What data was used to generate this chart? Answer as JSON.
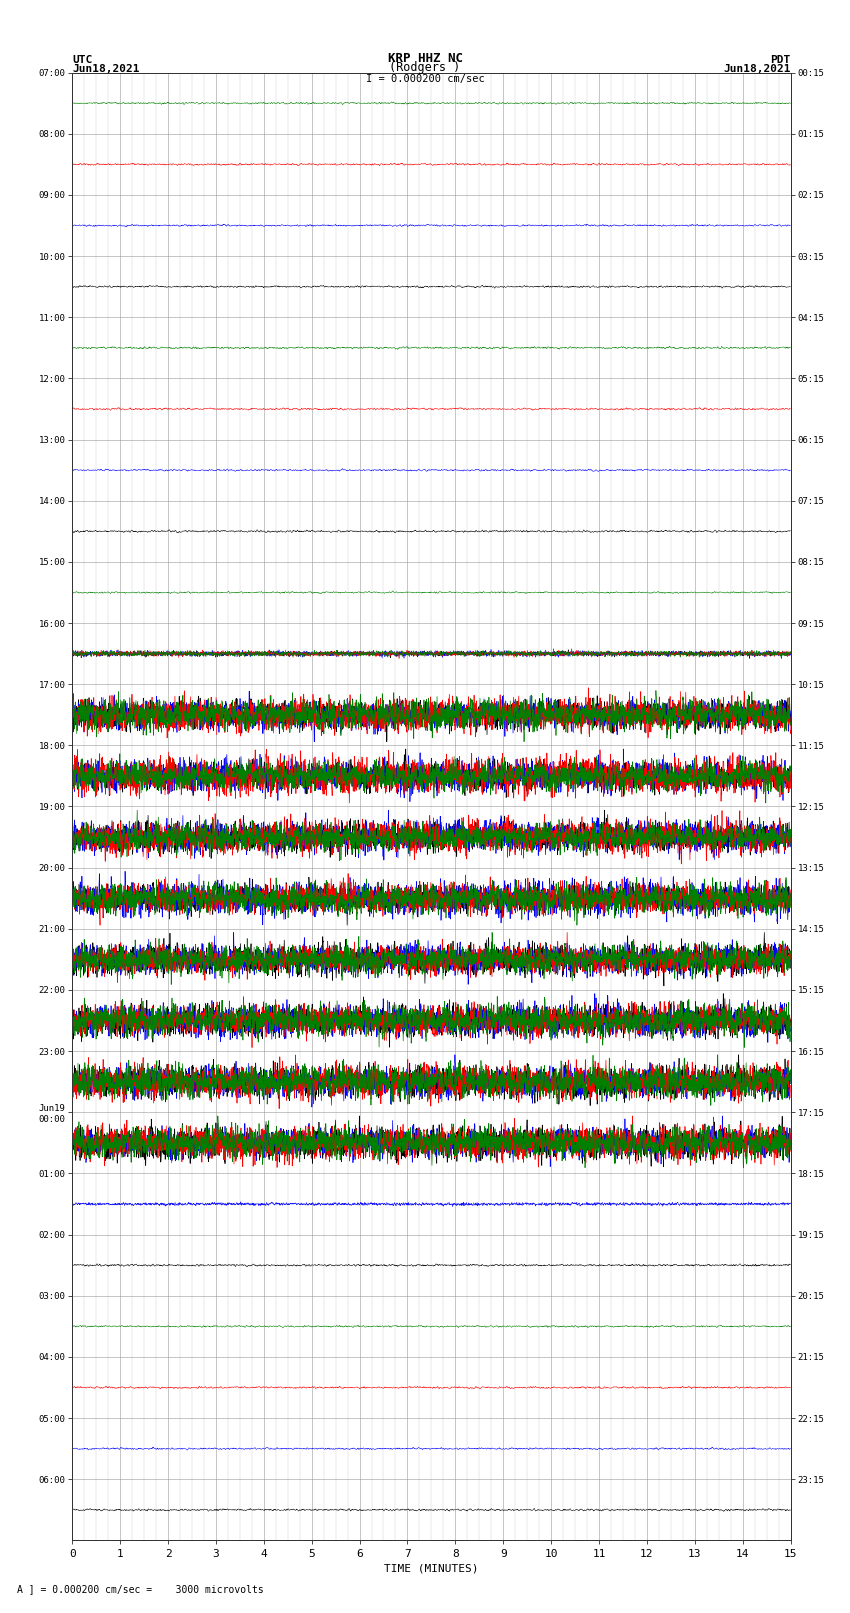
{
  "title_line1": "KRP HHZ NC",
  "title_line2": "(Rodgers )",
  "scale_label": "I = 0.000200 cm/sec",
  "left_header": "UTC",
  "left_date": "Jun18,2021",
  "right_header": "PDT",
  "right_date": "Jun18,2021",
  "left_time_labels_utc": [
    "07:00",
    "08:00",
    "09:00",
    "10:00",
    "11:00",
    "12:00",
    "13:00",
    "14:00",
    "15:00",
    "16:00",
    "17:00",
    "18:00",
    "19:00",
    "20:00",
    "21:00",
    "22:00",
    "23:00",
    "Jun19\n00:00",
    "01:00",
    "02:00",
    "03:00",
    "04:00",
    "05:00",
    "06:00"
  ],
  "right_time_labels_pdt": [
    "00:15",
    "01:15",
    "02:15",
    "03:15",
    "04:15",
    "05:15",
    "06:15",
    "07:15",
    "08:15",
    "09:15",
    "10:15",
    "11:15",
    "12:15",
    "13:15",
    "14:15",
    "15:15",
    "16:15",
    "17:15",
    "18:15",
    "19:15",
    "20:15",
    "21:15",
    "22:15",
    "23:15"
  ],
  "xlabel": "TIME (MINUTES)",
  "footer_label": "A ] = 0.000200 cm/sec =    3000 microvolts",
  "xlim": [
    0,
    15
  ],
  "xticks": [
    0,
    1,
    2,
    3,
    4,
    5,
    6,
    7,
    8,
    9,
    10,
    11,
    12,
    13,
    14,
    15
  ],
  "num_traces": 24,
  "trace_colors": [
    "black",
    "blue",
    "red",
    "green"
  ],
  "background_color": "#ffffff",
  "grid_color": "#999999",
  "fig_width": 8.5,
  "fig_height": 16.13
}
